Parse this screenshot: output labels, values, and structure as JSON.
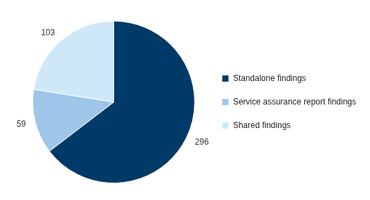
{
  "chart_data": {
    "type": "pie",
    "categories": [
      "Standalone findings",
      "Service assurance report findings",
      "Shared findings"
    ],
    "values": [
      296,
      59,
      103
    ],
    "colors": [
      "#003a68",
      "#9dc6e8",
      "#cfe8f9"
    ],
    "legend": "right",
    "data_labels": true
  }
}
